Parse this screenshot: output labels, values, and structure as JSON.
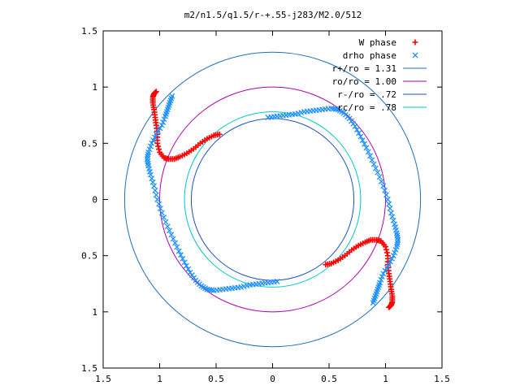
{
  "chart_data": {
    "type": "scatter",
    "title": "m2/n1.5/q1.5/r-+.55-j283/M2.0/512",
    "xlabel": "",
    "ylabel": "",
    "xlim": [
      -1.5,
      1.5
    ],
    "ylim": [
      -1.5,
      1.5
    ],
    "x_ticks": [
      -1.5,
      -1,
      -0.5,
      0,
      0.5,
      1,
      1.5
    ],
    "y_ticks": [
      -1.5,
      -1,
      -0.5,
      0,
      0.5,
      1,
      1.5
    ],
    "x_tick_labels": [
      "1.5",
      "1",
      "0.5",
      "0",
      "0.5",
      "1",
      "1.5"
    ],
    "y_tick_labels": [
      "1.5",
      "1",
      "0.5",
      "0",
      "0.5",
      "1",
      "1.5"
    ],
    "grid": false,
    "legend_position": "top-right",
    "circles": [
      {
        "name": "r+/ro = 1.31",
        "radius": 1.31,
        "color": "#1f6fbf"
      },
      {
        "name": "ro/ro = 1.00",
        "radius": 1.0,
        "color": "#b000b0"
      },
      {
        "name": "r-/ro = .72",
        "radius": 0.72,
        "color": "#1f4fbf"
      },
      {
        "name": "rc/ro = .78",
        "radius": 0.78,
        "color": "#00c8c8"
      }
    ],
    "series": [
      {
        "name": "W phase",
        "marker": "+",
        "color": "#ff0000",
        "x": [
          -0.47,
          -0.52,
          -0.58,
          -0.64,
          -0.7,
          -0.76,
          -0.82,
          -0.87,
          -0.92,
          -0.96,
          -1.0,
          -1.02,
          -1.02,
          -1.03,
          -1.04,
          -1.05,
          -1.06,
          -1.06,
          -1.05,
          -1.03,
          0.47,
          0.52,
          0.58,
          0.64,
          0.7,
          0.76,
          0.82,
          0.87,
          0.92,
          0.96,
          1.0,
          1.02,
          1.02,
          1.03,
          1.04,
          1.05,
          1.06,
          1.06,
          1.05,
          1.03
        ],
        "y": [
          0.58,
          0.57,
          0.54,
          0.5,
          0.45,
          0.41,
          0.38,
          0.36,
          0.36,
          0.37,
          0.42,
          0.5,
          0.58,
          0.66,
          0.73,
          0.8,
          0.86,
          0.91,
          0.94,
          0.96,
          -0.58,
          -0.57,
          -0.54,
          -0.5,
          -0.45,
          -0.41,
          -0.38,
          -0.36,
          -0.36,
          -0.37,
          -0.42,
          -0.5,
          -0.58,
          -0.66,
          -0.73,
          -0.8,
          -0.86,
          -0.91,
          -0.94,
          -0.96
        ]
      },
      {
        "name": "drho phase",
        "marker": "x",
        "color": "#1e90ff",
        "x": [
          -0.04,
          0.04,
          0.12,
          0.2,
          0.28,
          0.36,
          0.44,
          0.52,
          0.58,
          0.63,
          0.68,
          0.73,
          0.78,
          0.83,
          0.88,
          0.93,
          0.98,
          1.02,
          1.05,
          1.08,
          1.1,
          1.11,
          1.1,
          1.07,
          1.03,
          0.98,
          0.95,
          0.93,
          0.91,
          0.89,
          0.04,
          -0.04,
          -0.12,
          -0.2,
          -0.28,
          -0.36,
          -0.44,
          -0.52,
          -0.58,
          -0.63,
          -0.68,
          -0.73,
          -0.78,
          -0.83,
          -0.88,
          -0.93,
          -0.98,
          -1.02,
          -1.05,
          -1.08,
          -1.1,
          -1.11,
          -1.1,
          -1.07,
          -1.03,
          -0.98,
          -0.95,
          -0.93,
          -0.91,
          -0.89
        ],
        "y": [
          0.73,
          0.74,
          0.75,
          0.76,
          0.78,
          0.79,
          0.8,
          0.81,
          0.8,
          0.77,
          0.72,
          0.65,
          0.56,
          0.46,
          0.35,
          0.24,
          0.12,
          0.0,
          -0.12,
          -0.22,
          -0.3,
          -0.36,
          -0.42,
          -0.5,
          -0.58,
          -0.66,
          -0.74,
          -0.8,
          -0.86,
          -0.92,
          -0.73,
          -0.74,
          -0.75,
          -0.76,
          -0.78,
          -0.79,
          -0.8,
          -0.81,
          -0.8,
          -0.77,
          -0.72,
          -0.65,
          -0.56,
          -0.46,
          -0.35,
          -0.24,
          -0.12,
          0.0,
          0.12,
          0.22,
          0.3,
          0.36,
          0.42,
          0.5,
          0.58,
          0.66,
          0.74,
          0.8,
          0.86,
          0.92
        ]
      }
    ]
  }
}
